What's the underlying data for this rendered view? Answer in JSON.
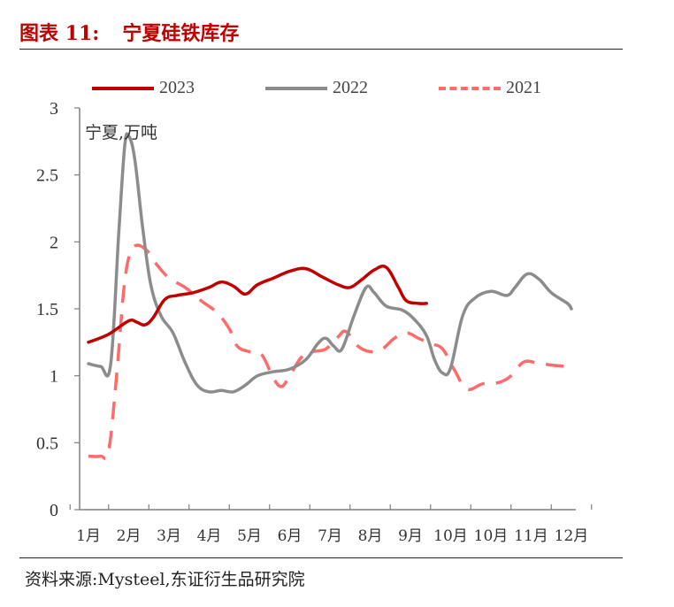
{
  "header": {
    "figure_no": "图表 11:",
    "title": "宁夏硅铁库存"
  },
  "source": {
    "label": "资料来源:",
    "text": "Mysteel,东证衍生品研究院"
  },
  "colors": {
    "accent": "#c00000",
    "series_2023": "#c00000",
    "series_2022": "#8c8c8c",
    "series_2021": "#ff6b6b",
    "axis": "#808080"
  },
  "chart_data": {
    "type": "line",
    "unit_label": "宁夏,万吨",
    "ylim": [
      0,
      3
    ],
    "y_ticks": [
      "0",
      "0.5",
      "1",
      "1.5",
      "2",
      "2.5",
      "3"
    ],
    "x_tick_labels": [
      "1月",
      "2月",
      "3月",
      "4月",
      "5月",
      "6月",
      "7月",
      "8月",
      "9月",
      "10月",
      "10月",
      "11月",
      "12月"
    ],
    "grid": false,
    "legend_position": "top",
    "series": [
      {
        "name": "2023",
        "style": "solid",
        "points": [
          [
            0.0,
            1.25
          ],
          [
            0.5,
            1.31
          ],
          [
            1.0,
            1.41
          ],
          [
            1.2,
            1.4
          ],
          [
            1.4,
            1.38
          ],
          [
            1.6,
            1.43
          ],
          [
            1.9,
            1.57
          ],
          [
            2.2,
            1.6
          ],
          [
            2.6,
            1.62
          ],
          [
            3.0,
            1.66
          ],
          [
            3.3,
            1.7
          ],
          [
            3.6,
            1.67
          ],
          [
            3.9,
            1.61
          ],
          [
            4.2,
            1.68
          ],
          [
            4.6,
            1.73
          ],
          [
            5.0,
            1.78
          ],
          [
            5.4,
            1.8
          ],
          [
            5.8,
            1.74
          ],
          [
            6.2,
            1.68
          ],
          [
            6.5,
            1.66
          ],
          [
            6.8,
            1.72
          ],
          [
            7.1,
            1.79
          ],
          [
            7.4,
            1.81
          ],
          [
            7.7,
            1.66
          ],
          [
            7.9,
            1.56
          ],
          [
            8.2,
            1.54
          ],
          [
            8.4,
            1.54
          ]
        ]
      },
      {
        "name": "2022",
        "style": "solid",
        "points": [
          [
            0.0,
            1.09
          ],
          [
            0.3,
            1.07
          ],
          [
            0.55,
            1.08
          ],
          [
            0.75,
            2.05
          ],
          [
            0.9,
            2.71
          ],
          [
            1.0,
            2.79
          ],
          [
            1.15,
            2.62
          ],
          [
            1.35,
            2.1
          ],
          [
            1.55,
            1.68
          ],
          [
            1.8,
            1.45
          ],
          [
            2.1,
            1.32
          ],
          [
            2.4,
            1.1
          ],
          [
            2.7,
            0.93
          ],
          [
            3.0,
            0.88
          ],
          [
            3.3,
            0.89
          ],
          [
            3.6,
            0.88
          ],
          [
            3.9,
            0.93
          ],
          [
            4.2,
            1.0
          ],
          [
            4.6,
            1.03
          ],
          [
            5.0,
            1.05
          ],
          [
            5.4,
            1.12
          ],
          [
            5.7,
            1.24
          ],
          [
            5.9,
            1.28
          ],
          [
            6.1,
            1.22
          ],
          [
            6.3,
            1.2
          ],
          [
            6.6,
            1.45
          ],
          [
            6.9,
            1.66
          ],
          [
            7.1,
            1.62
          ],
          [
            7.4,
            1.52
          ],
          [
            7.8,
            1.49
          ],
          [
            8.1,
            1.42
          ],
          [
            8.4,
            1.3
          ],
          [
            8.6,
            1.12
          ],
          [
            8.8,
            1.02
          ],
          [
            9.0,
            1.06
          ],
          [
            9.3,
            1.45
          ],
          [
            9.6,
            1.58
          ],
          [
            10.0,
            1.63
          ],
          [
            10.4,
            1.6
          ],
          [
            10.6,
            1.66
          ],
          [
            10.9,
            1.76
          ],
          [
            11.2,
            1.72
          ],
          [
            11.5,
            1.62
          ],
          [
            11.9,
            1.54
          ],
          [
            12.0,
            1.5
          ]
        ]
      },
      {
        "name": "2021",
        "style": "dashed",
        "points": [
          [
            0.0,
            0.4
          ],
          [
            0.3,
            0.4
          ],
          [
            0.5,
            0.44
          ],
          [
            0.7,
            1.0
          ],
          [
            0.9,
            1.7
          ],
          [
            1.1,
            1.95
          ],
          [
            1.4,
            1.95
          ],
          [
            1.7,
            1.83
          ],
          [
            2.0,
            1.73
          ],
          [
            2.4,
            1.66
          ],
          [
            2.8,
            1.56
          ],
          [
            3.2,
            1.47
          ],
          [
            3.5,
            1.35
          ],
          [
            3.7,
            1.22
          ],
          [
            4.0,
            1.18
          ],
          [
            4.3,
            1.16
          ],
          [
            4.6,
            0.98
          ],
          [
            4.8,
            0.92
          ],
          [
            5.0,
            1.0
          ],
          [
            5.3,
            1.14
          ],
          [
            5.6,
            1.18
          ],
          [
            5.9,
            1.2
          ],
          [
            6.2,
            1.29
          ],
          [
            6.4,
            1.33
          ],
          [
            6.7,
            1.22
          ],
          [
            7.0,
            1.18
          ],
          [
            7.3,
            1.2
          ],
          [
            7.6,
            1.28
          ],
          [
            7.9,
            1.32
          ],
          [
            8.2,
            1.28
          ],
          [
            8.5,
            1.24
          ],
          [
            8.8,
            1.2
          ],
          [
            9.1,
            1.04
          ],
          [
            9.4,
            0.9
          ],
          [
            9.8,
            0.94
          ],
          [
            10.2,
            0.95
          ],
          [
            10.5,
            1.0
          ],
          [
            10.8,
            1.1
          ],
          [
            11.1,
            1.1
          ],
          [
            11.5,
            1.08
          ],
          [
            11.9,
            1.07
          ]
        ]
      }
    ]
  }
}
